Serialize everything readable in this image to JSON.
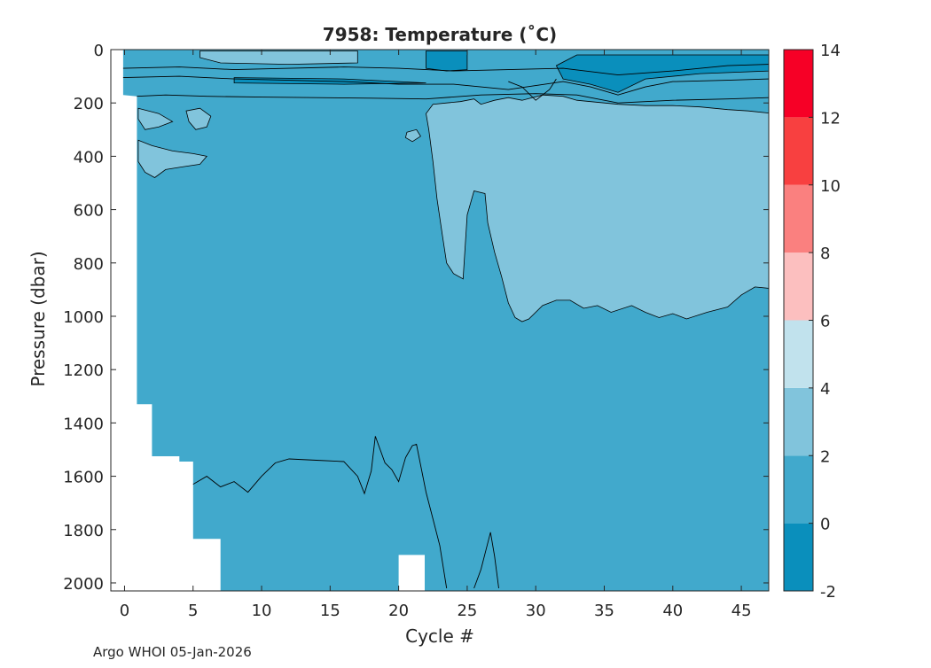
{
  "chart_data": {
    "type": "contour",
    "title": "7958:  Temperature (˚C)",
    "xlabel": "Cycle #",
    "ylabel": "Pressure (dbar)",
    "xlim": [
      -1,
      47
    ],
    "ylim": [
      2030,
      0
    ],
    "x_ticks": [
      0,
      5,
      10,
      15,
      20,
      25,
      30,
      35,
      40,
      45
    ],
    "y_ticks": [
      0,
      200,
      400,
      600,
      800,
      1000,
      1200,
      1400,
      1600,
      1800,
      2000
    ],
    "colorbar": {
      "range": [
        -2,
        14
      ],
      "ticks": [
        -2,
        0,
        2,
        4,
        6,
        8,
        10,
        12,
        14
      ],
      "bands": [
        {
          "from": -2,
          "to": 0,
          "color": "#0a8fbc"
        },
        {
          "from": 0,
          "to": 2,
          "color": "#41a9cc"
        },
        {
          "from": 2,
          "to": 4,
          "color": "#81c4dc"
        },
        {
          "from": 4,
          "to": 6,
          "color": "#c1e2ed"
        },
        {
          "from": 6,
          "to": 8,
          "color": "#fcbfbf"
        },
        {
          "from": 8,
          "to": 10,
          "color": "#fa807f"
        },
        {
          "from": 10,
          "to": 12,
          "color": "#f84040"
        },
        {
          "from": 12,
          "to": 14,
          "color": "#f60026"
        }
      ]
    },
    "background_band": 1,
    "regions": [
      {
        "name": "upper-warm-layer",
        "band": 2,
        "points": [
          [
            22.0,
            240
          ],
          [
            22.5,
            205
          ],
          [
            23.5,
            200
          ],
          [
            24.5,
            195
          ],
          [
            25.5,
            185
          ],
          [
            26.0,
            205
          ],
          [
            27.0,
            190
          ],
          [
            28.0,
            180
          ],
          [
            29.0,
            190
          ],
          [
            30.5,
            170
          ],
          [
            32.0,
            175
          ],
          [
            33.0,
            190
          ],
          [
            34.0,
            195
          ],
          [
            36.0,
            205
          ],
          [
            38.0,
            210
          ],
          [
            40.0,
            210
          ],
          [
            42.0,
            215
          ],
          [
            44.0,
            225
          ],
          [
            45.5,
            230
          ],
          [
            47.0,
            238
          ],
          [
            47.0,
            895
          ],
          [
            46.0,
            890
          ],
          [
            45.0,
            920
          ],
          [
            44.0,
            965
          ],
          [
            42.5,
            985
          ],
          [
            41.0,
            1010
          ],
          [
            40.0,
            990
          ],
          [
            39.0,
            1005
          ],
          [
            38.0,
            985
          ],
          [
            37.0,
            960
          ],
          [
            35.5,
            985
          ],
          [
            34.5,
            960
          ],
          [
            33.5,
            970
          ],
          [
            32.5,
            940
          ],
          [
            31.5,
            940
          ],
          [
            30.5,
            960
          ],
          [
            29.5,
            1010
          ],
          [
            29.0,
            1020
          ],
          [
            28.5,
            1005
          ],
          [
            28.0,
            950
          ],
          [
            27.5,
            850
          ],
          [
            27.0,
            760
          ],
          [
            26.5,
            650
          ],
          [
            26.3,
            540
          ],
          [
            25.5,
            530
          ],
          [
            25.0,
            620
          ],
          [
            24.7,
            860
          ],
          [
            24.0,
            840
          ],
          [
            23.5,
            800
          ],
          [
            23.2,
            700
          ],
          [
            22.8,
            560
          ],
          [
            22.5,
            420
          ],
          [
            22.2,
            300
          ]
        ]
      },
      {
        "name": "warm-patch-a",
        "band": 2,
        "points": [
          [
            1.0,
            220
          ],
          [
            2.5,
            240
          ],
          [
            3.5,
            270
          ],
          [
            2.5,
            290
          ],
          [
            1.5,
            300
          ],
          [
            1.0,
            260
          ]
        ]
      },
      {
        "name": "warm-patch-b",
        "band": 2,
        "points": [
          [
            4.5,
            230
          ],
          [
            5.5,
            220
          ],
          [
            6.3,
            250
          ],
          [
            6.0,
            290
          ],
          [
            5.2,
            300
          ],
          [
            4.7,
            270
          ]
        ]
      },
      {
        "name": "warm-patch-c",
        "band": 2,
        "points": [
          [
            1.0,
            340
          ],
          [
            2.0,
            360
          ],
          [
            3.5,
            380
          ],
          [
            5.0,
            390
          ],
          [
            6.0,
            400
          ],
          [
            5.5,
            430
          ],
          [
            4.2,
            440
          ],
          [
            3.0,
            450
          ],
          [
            2.2,
            480
          ],
          [
            1.5,
            460
          ],
          [
            1.0,
            420
          ]
        ]
      },
      {
        "name": "warm-patch-d",
        "band": 2,
        "points": [
          [
            20.6,
            310
          ],
          [
            21.3,
            300
          ],
          [
            21.6,
            325
          ],
          [
            21.0,
            345
          ],
          [
            20.5,
            330
          ]
        ]
      },
      {
        "name": "surface-warm-patch",
        "band": 2,
        "points": [
          [
            5.5,
            5
          ],
          [
            17.0,
            5
          ],
          [
            17.0,
            50
          ],
          [
            12.0,
            55
          ],
          [
            7.0,
            50
          ],
          [
            5.5,
            30
          ]
        ]
      },
      {
        "name": "surface-cold-patch-a",
        "band": 0,
        "points": [
          [
            22.0,
            5
          ],
          [
            25.0,
            5
          ],
          [
            25.0,
            75
          ],
          [
            23.5,
            80
          ],
          [
            22.0,
            70
          ]
        ]
      },
      {
        "name": "surface-cold-patch-b",
        "band": 0,
        "points": [
          [
            33.0,
            20
          ],
          [
            47.0,
            20
          ],
          [
            47.0,
            80
          ],
          [
            42.0,
            90
          ],
          [
            38.0,
            110
          ],
          [
            36.0,
            160
          ],
          [
            34.0,
            130
          ],
          [
            32.0,
            110
          ],
          [
            31.5,
            60
          ]
        ]
      },
      {
        "name": "surface-cold-stripe",
        "band": 0,
        "points": [
          [
            8.0,
            105
          ],
          [
            16.0,
            110
          ],
          [
            20.0,
            120
          ],
          [
            22.0,
            125
          ],
          [
            16.0,
            130
          ],
          [
            8.0,
            125
          ]
        ]
      }
    ],
    "masks": [
      {
        "name": "no-data-top-left",
        "points": [
          [
            -1,
            0
          ],
          [
            -0.1,
            0
          ],
          [
            -0.1,
            170
          ],
          [
            0.9,
            175
          ],
          [
            0.9,
            1330
          ],
          [
            2.0,
            1330
          ],
          [
            2.0,
            1525
          ],
          [
            4.0,
            1525
          ],
          [
            4.0,
            1545
          ],
          [
            5.0,
            1545
          ],
          [
            5.0,
            1835
          ],
          [
            7.0,
            1835
          ],
          [
            7.0,
            2030
          ],
          [
            -1,
            2030
          ]
        ]
      },
      {
        "name": "no-data-gap-21",
        "points": [
          [
            20.0,
            1895
          ],
          [
            21.9,
            1895
          ],
          [
            21.9,
            2030
          ],
          [
            20.0,
            2030
          ]
        ]
      }
    ],
    "contour_lines": [
      {
        "name": "deep-contour-lower",
        "points": [
          [
            5.0,
            1630
          ],
          [
            6.0,
            1600
          ],
          [
            7.0,
            1640
          ],
          [
            8.0,
            1620
          ],
          [
            9.0,
            1660
          ],
          [
            10.0,
            1600
          ],
          [
            11.0,
            1550
          ],
          [
            12.0,
            1535
          ],
          [
            14.0,
            1540
          ],
          [
            16.0,
            1545
          ],
          [
            17.0,
            1600
          ],
          [
            17.5,
            1665
          ],
          [
            18.0,
            1580
          ],
          [
            18.3,
            1450
          ],
          [
            19.0,
            1550
          ],
          [
            19.5,
            1575
          ],
          [
            20.0,
            1620
          ],
          [
            20.5,
            1530
          ],
          [
            21.0,
            1485
          ],
          [
            21.3,
            1480
          ],
          [
            22.0,
            1660
          ],
          [
            22.5,
            1760
          ],
          [
            23.0,
            1860
          ],
          [
            23.5,
            2020
          ]
        ]
      },
      {
        "name": "deep-contour-spike",
        "points": [
          [
            25.5,
            2020
          ],
          [
            26.0,
            1950
          ],
          [
            26.7,
            1810
          ],
          [
            27.0,
            1900
          ],
          [
            27.3,
            2020
          ]
        ]
      },
      {
        "name": "upper-contour-main",
        "points": [
          [
            0.9,
            175
          ],
          [
            3.0,
            170
          ],
          [
            6.0,
            175
          ],
          [
            10.0,
            178
          ],
          [
            14.0,
            180
          ],
          [
            18.0,
            182
          ],
          [
            22.0,
            185
          ],
          [
            26.0,
            170
          ],
          [
            30.0,
            165
          ],
          [
            33.0,
            170
          ],
          [
            36.0,
            200
          ],
          [
            40.0,
            190
          ],
          [
            44.0,
            185
          ],
          [
            47.0,
            180
          ]
        ]
      },
      {
        "name": "upper-contour-2",
        "points": [
          [
            -0.1,
            105
          ],
          [
            4.0,
            100
          ],
          [
            8.0,
            110
          ],
          [
            12.0,
            115
          ],
          [
            16.0,
            120
          ],
          [
            20.0,
            130
          ],
          [
            24.0,
            130
          ],
          [
            26.0,
            140
          ],
          [
            28.0,
            150
          ],
          [
            30.0,
            135
          ],
          [
            32.0,
            120
          ],
          [
            34.0,
            140
          ],
          [
            36.0,
            170
          ],
          [
            38.0,
            140
          ],
          [
            40.0,
            120
          ],
          [
            44.0,
            115
          ],
          [
            47.0,
            110
          ]
        ]
      },
      {
        "name": "upper-contour-3",
        "points": [
          [
            -0.1,
            70
          ],
          [
            4.0,
            65
          ],
          [
            8.0,
            75
          ],
          [
            12.0,
            70
          ],
          [
            16.0,
            65
          ],
          [
            20.0,
            70
          ],
          [
            24.0,
            80
          ],
          [
            28.0,
            75
          ],
          [
            32.0,
            70
          ],
          [
            36.0,
            95
          ],
          [
            40.0,
            80
          ],
          [
            44.0,
            60
          ],
          [
            47.0,
            55
          ]
        ]
      },
      {
        "name": "upper-contour-4",
        "points": [
          [
            28.0,
            120
          ],
          [
            29.0,
            140
          ],
          [
            30.0,
            190
          ],
          [
            31.0,
            150
          ],
          [
            31.5,
            110
          ]
        ]
      }
    ]
  },
  "footer": "Argo WHOI 05-Jan-2026"
}
